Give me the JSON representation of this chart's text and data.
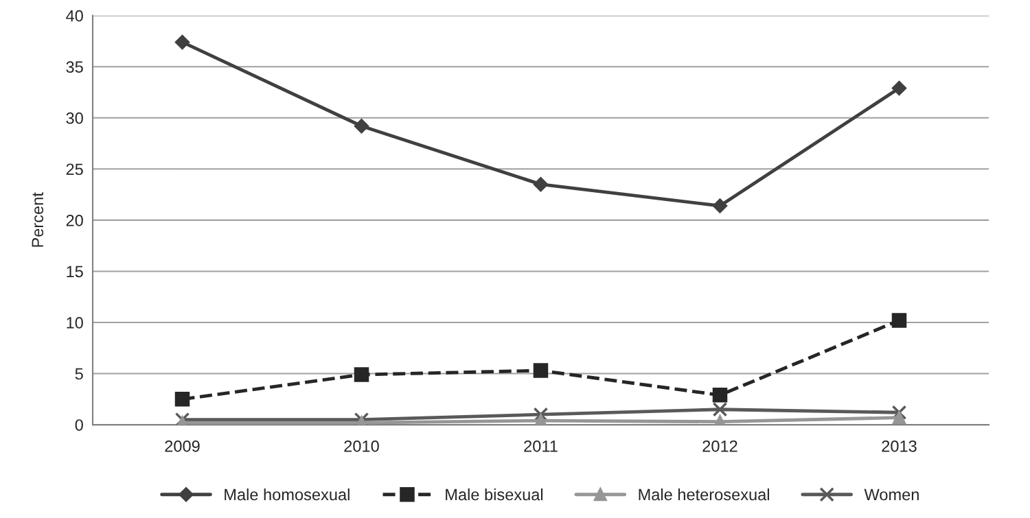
{
  "chart_data": {
    "type": "line",
    "ylabel": "Percent",
    "categories": [
      "2009",
      "2010",
      "2011",
      "2012",
      "2013"
    ],
    "series": [
      {
        "name": "Male homosexual",
        "color": "#404040",
        "marker": "diamond",
        "line_style": "solid",
        "values": [
          37.4,
          29.2,
          23.5,
          21.4,
          32.9
        ]
      },
      {
        "name": "Male bisexual",
        "color": "#262626",
        "marker": "square",
        "line_style": "dashed",
        "values": [
          2.5,
          4.9,
          5.3,
          2.9,
          10.2
        ]
      },
      {
        "name": "Male heterosexual",
        "color": "#969696",
        "marker": "triangle",
        "line_style": "solid",
        "values": [
          0.2,
          0.2,
          0.4,
          0.3,
          0.7
        ]
      },
      {
        "name": "Women",
        "color": "#595959",
        "marker": "cross",
        "line_style": "solid",
        "values": [
          0.5,
          0.5,
          1.0,
          1.5,
          1.2
        ]
      }
    ],
    "ylim": [
      0,
      40
    ],
    "yticks": [
      0,
      5,
      10,
      15,
      20,
      25,
      30,
      35,
      40
    ],
    "grid": "y",
    "legend": "bottom"
  }
}
